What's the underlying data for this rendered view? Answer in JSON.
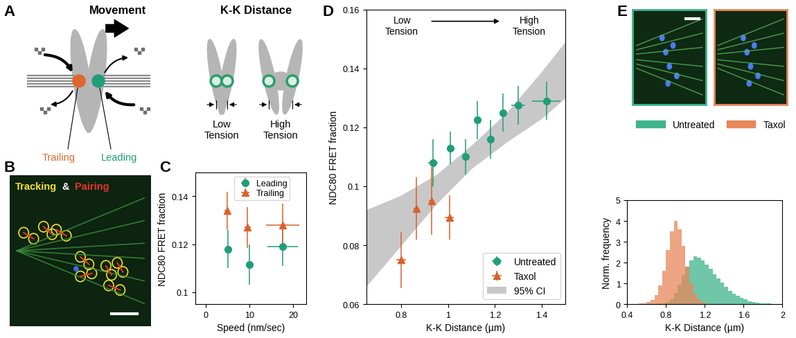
{
  "panel_labels": [
    "A",
    "B",
    "C",
    "D",
    "E"
  ],
  "panel_a": {
    "movement": "Movement",
    "trailing": "Trailing",
    "leading": "Leading",
    "kk_distance": "K-K Distance",
    "low_tension": "Low\nTension",
    "high_tension": "High\nTension"
  },
  "panel_b": {
    "title_parts": [
      {
        "text": "Tracking",
        "color": "#f2e02e"
      },
      {
        "text": "&",
        "color": "#ffffff"
      },
      {
        "text": "Pairing",
        "color": "#e8322c"
      }
    ]
  },
  "chart_data": [
    {
      "type": "scatter",
      "xlabel": "Speed (nm/sec)",
      "ylabel": "NDC80 FRET fraction",
      "xlim": [
        -2.5,
        23
      ],
      "xticks": [
        0,
        10,
        20
      ],
      "ylim": [
        0.095,
        0.15
      ],
      "yticks": [
        0.1,
        0.12,
        0.14
      ],
      "legend": "upper center",
      "series": [
        {
          "name": "Leading",
          "color": "#1f9e78",
          "marker": "circle",
          "x": [
            5,
            10,
            17.5
          ],
          "values": [
            0.118,
            0.1115,
            0.119
          ],
          "xerr": [
            0.7,
            0.7,
            3.5
          ],
          "yerr": [
            0.008,
            0.0085,
            0.008
          ]
        },
        {
          "name": "Trailing",
          "color": "#d9622b",
          "marker": "triangle",
          "x": [
            4.8,
            9.5,
            17.5
          ],
          "values": [
            0.134,
            0.127,
            0.128
          ],
          "xerr": [
            0.5,
            0.7,
            3.8
          ],
          "yerr": [
            0.008,
            0.0085,
            0.009
          ]
        }
      ]
    },
    {
      "type": "scatter",
      "xlabel": "K-K Distance (µm)",
      "ylabel": "NDC80 FRET fraction",
      "xlim": [
        0.65,
        1.5
      ],
      "xticks": [
        0.8,
        1,
        1.2,
        1.4
      ],
      "ylim": [
        0.06,
        0.16
      ],
      "yticks": [
        0.06,
        0.08,
        0.1,
        0.12,
        0.14,
        0.16
      ],
      "legend": "lower right",
      "annotations": [
        "Low\nTension",
        "High\nTension"
      ],
      "series": [
        {
          "name": "Untreated",
          "color": "#1f9e78",
          "marker": "circle",
          "x": [
            0.935,
            1.01,
            1.075,
            1.125,
            1.18,
            1.235,
            1.3,
            1.42
          ],
          "values": [
            0.108,
            0.113,
            0.11,
            0.1225,
            0.116,
            0.125,
            0.1275,
            0.129
          ],
          "xerr": [
            0.02,
            0.012,
            0.01,
            0.01,
            0.01,
            0.01,
            0.03,
            0.06
          ],
          "yerr": [
            0.008,
            0.0055,
            0.006,
            0.0065,
            0.0065,
            0.0065,
            0.0065,
            0.0065
          ]
        },
        {
          "name": "Taxol",
          "color": "#d9622b",
          "marker": "triangle",
          "x": [
            0.8,
            0.865,
            0.93,
            1.005
          ],
          "values": [
            0.075,
            0.0925,
            0.095,
            0.0895
          ],
          "xerr": [
            0.02,
            0.012,
            0.012,
            0.02
          ],
          "yerr": [
            0.0095,
            0.0105,
            0.0115,
            0.0075
          ]
        },
        {
          "name": "95% CI",
          "type": "band",
          "color": "#c8c8c8",
          "x": [
            0.65,
            0.8,
            0.95,
            1.1,
            1.25,
            1.4,
            1.5
          ],
          "lower": [
            0.066,
            0.08,
            0.094,
            0.106,
            0.115,
            0.123,
            0.13
          ],
          "upper": [
            0.092,
            0.097,
            0.104,
            0.114,
            0.125,
            0.139,
            0.149
          ]
        }
      ]
    },
    {
      "type": "histogram",
      "xlabel": "K-K Distance (µm)",
      "ylabel": "Norm. frequency",
      "xlim": [
        0.4,
        2.0
      ],
      "xticks": [
        0.4,
        0.8,
        1.2,
        1.6,
        2
      ],
      "ylim": [
        0,
        5
      ],
      "yticks": [
        0,
        1,
        2,
        3,
        4,
        5
      ],
      "bins": [
        0.52,
        0.56,
        0.6,
        0.64,
        0.68,
        0.72,
        0.76,
        0.8,
        0.84,
        0.88,
        0.92,
        0.96,
        1.0,
        1.04,
        1.08,
        1.12,
        1.16,
        1.2,
        1.24,
        1.28,
        1.32,
        1.36,
        1.4,
        1.44,
        1.48,
        1.52,
        1.56,
        1.6,
        1.64,
        1.68,
        1.72,
        1.76,
        1.8,
        1.84,
        1.88,
        1.92,
        1.96,
        2.0
      ],
      "series": [
        {
          "name": "Untreated",
          "color": "#3fb38c",
          "values": [
            0,
            0,
            0,
            0,
            0,
            0.02,
            0.05,
            0.1,
            0.25,
            0.55,
            0.95,
            1.4,
            1.8,
            2.1,
            2.3,
            2.25,
            2.1,
            1.9,
            1.7,
            1.45,
            1.25,
            1.05,
            0.85,
            0.65,
            0.5,
            0.4,
            0.3,
            0.22,
            0.15,
            0.1,
            0.07,
            0.05,
            0.03,
            0.02,
            0.01,
            0.01,
            0
          ]
        },
        {
          "name": "Taxol",
          "color": "#e8875a",
          "values": [
            0.05,
            0.05,
            0.1,
            0.2,
            0.45,
            0.9,
            1.6,
            2.6,
            3.5,
            4.0,
            3.6,
            2.8,
            1.8,
            1.0,
            0.5,
            0.25,
            0.1,
            0.05,
            0,
            0,
            0,
            0,
            0,
            0,
            0,
            0,
            0,
            0,
            0,
            0,
            0,
            0,
            0,
            0,
            0,
            0,
            0
          ]
        }
      ]
    }
  ]
}
